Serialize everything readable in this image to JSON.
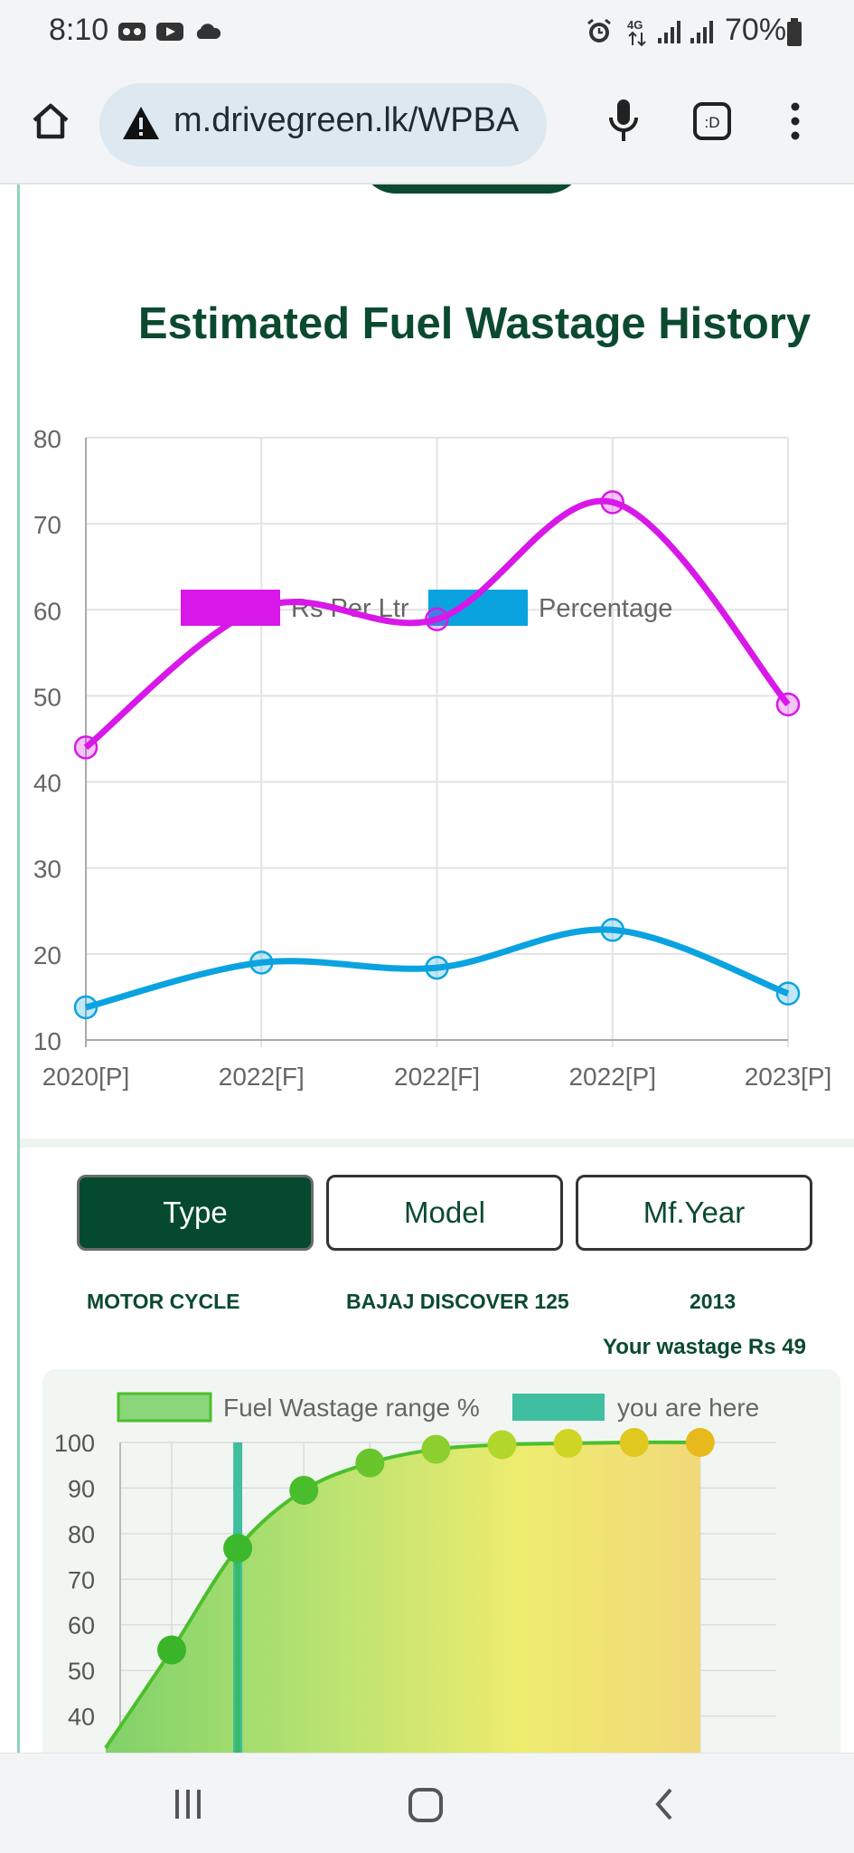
{
  "status": {
    "time": "8:10",
    "battery": "70%",
    "icons": [
      "voicemail-icon",
      "youtube-icon",
      "cloud-icon",
      "alarm-icon",
      "4g-icon",
      "signal-icon",
      "signal-icon",
      "battery-icon"
    ]
  },
  "browser": {
    "url": "m.drivegreen.lk/WPBA",
    "icons": [
      "home-icon",
      "warning-icon",
      "mic-icon",
      "tab-switcher-icon",
      "more-vert-icon"
    ]
  },
  "history": {
    "title": "Estimated Fuel Wastage History",
    "chart_data": {
      "type": "line",
      "categories": [
        "2020[P]",
        "2022[F]",
        "2022[F]",
        "2022[P]",
        "2023[P]"
      ],
      "series": [
        {
          "name": "Rs Per Ltr",
          "values": [
            44,
            60.3,
            58.9,
            72.5,
            49
          ],
          "color": "#d818e8"
        },
        {
          "name": "Percentage",
          "values": [
            13.8,
            19,
            18.4,
            22.8,
            15.4
          ],
          "color": "#0aa3e0"
        }
      ],
      "yticks": [
        "80",
        "70",
        "60",
        "50",
        "40",
        "30",
        "20",
        "10"
      ],
      "ylim": [
        10,
        80
      ],
      "grid": true,
      "legend": "top-center",
      "smooth": true
    }
  },
  "selectors": {
    "type_label": "Type",
    "model_label": "Model",
    "year_label": "Mf.Year",
    "type_value": "MOTOR CYCLE",
    "model_value": "BAJAJ DISCOVER 125",
    "year_value": "2013",
    "wastage_note": "Your wastage Rs 49"
  },
  "range": {
    "chart_data": {
      "type": "area",
      "series": [
        {
          "name": "Fuel Wastage range %",
          "values": [
            33,
            54.5,
            76.8,
            89.5,
            95.5,
            98.5,
            99.5,
            99.8,
            100,
            100
          ],
          "color": "#4bbf2c"
        },
        {
          "name": "you are here",
          "color": "#3fbfa0",
          "position_index": 2
        }
      ],
      "yticks": [
        "100",
        "90",
        "80",
        "70",
        "60",
        "50",
        "40"
      ],
      "ylim": [
        30,
        100
      ],
      "legend": "top-center",
      "grid": true
    }
  }
}
